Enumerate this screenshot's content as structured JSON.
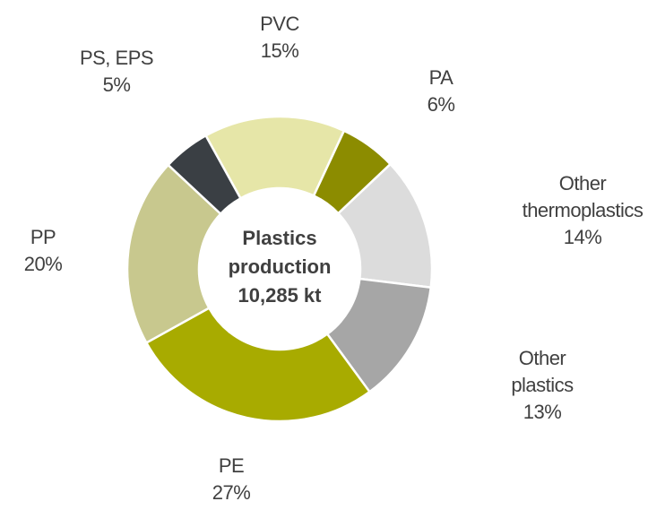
{
  "chart_data": {
    "type": "donut",
    "annotation": [
      "Plastics",
      "production",
      "10,285 kt"
    ],
    "categories": [
      "PVC",
      "PA",
      "Other thermoplastics",
      "Other plastics",
      "PE",
      "PP",
      "PS, EPS"
    ],
    "values": [
      15,
      6,
      14,
      13,
      27,
      20,
      5
    ],
    "value_labels": [
      "15%",
      "6%",
      "14%",
      "13%",
      "27%",
      "20%",
      "5%"
    ],
    "colors": [
      "#e6e6a8",
      "#8c8c00",
      "#dcdcdc",
      "#a6a6a6",
      "#a8ab00",
      "#c8c88e",
      "#3a3f44"
    ]
  }
}
